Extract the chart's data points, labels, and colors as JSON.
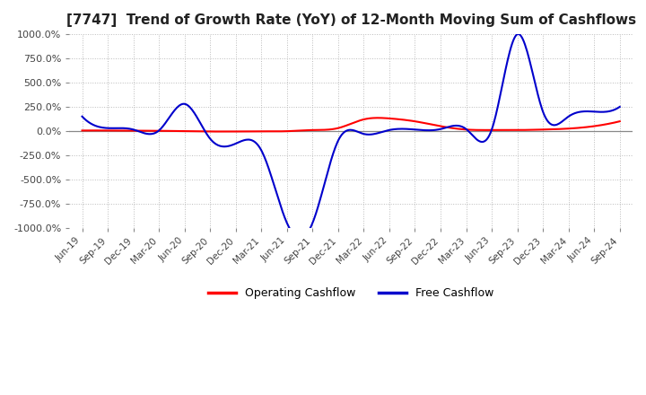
{
  "title": "[7747]  Trend of Growth Rate (YoY) of 12-Month Moving Sum of Cashflows",
  "ylim": [
    -1000,
    1000
  ],
  "yticks": [
    -1000,
    -750,
    -500,
    -250,
    0,
    250,
    500,
    750,
    1000
  ],
  "yticklabels": [
    "-1000.0%",
    "-750.0%",
    "-500.0%",
    "-250.0%",
    "0.0%",
    "250.0%",
    "500.0%",
    "750.0%",
    "1000.0%"
  ],
  "background_color": "#ffffff",
  "grid_color": "#bbbbbb",
  "operating_color": "#ff0000",
  "free_color": "#0000cc",
  "legend_labels": [
    "Operating Cashflow",
    "Free Cashflow"
  ],
  "x_labels": [
    "Jun-19",
    "Sep-19",
    "Dec-19",
    "Mar-20",
    "Jun-20",
    "Sep-20",
    "Dec-20",
    "Mar-21",
    "Jun-21",
    "Sep-21",
    "Dec-21",
    "Mar-22",
    "Jun-22",
    "Sep-22",
    "Dec-22",
    "Mar-23",
    "Jun-23",
    "Sep-23",
    "Dec-23",
    "Mar-24",
    "Jun-24",
    "Sep-24"
  ],
  "operating_cashflow": [
    5,
    5,
    3,
    2,
    -2,
    -5,
    -5,
    -3,
    -2,
    10,
    30,
    120,
    130,
    100,
    50,
    15,
    10,
    10,
    15,
    25,
    50,
    100
  ],
  "free_cashflow": [
    150,
    30,
    15,
    5,
    280,
    -80,
    -130,
    -200,
    -950,
    -950,
    -100,
    -30,
    10,
    15,
    20,
    20,
    15,
    1000,
    200,
    150,
    200,
    250
  ]
}
